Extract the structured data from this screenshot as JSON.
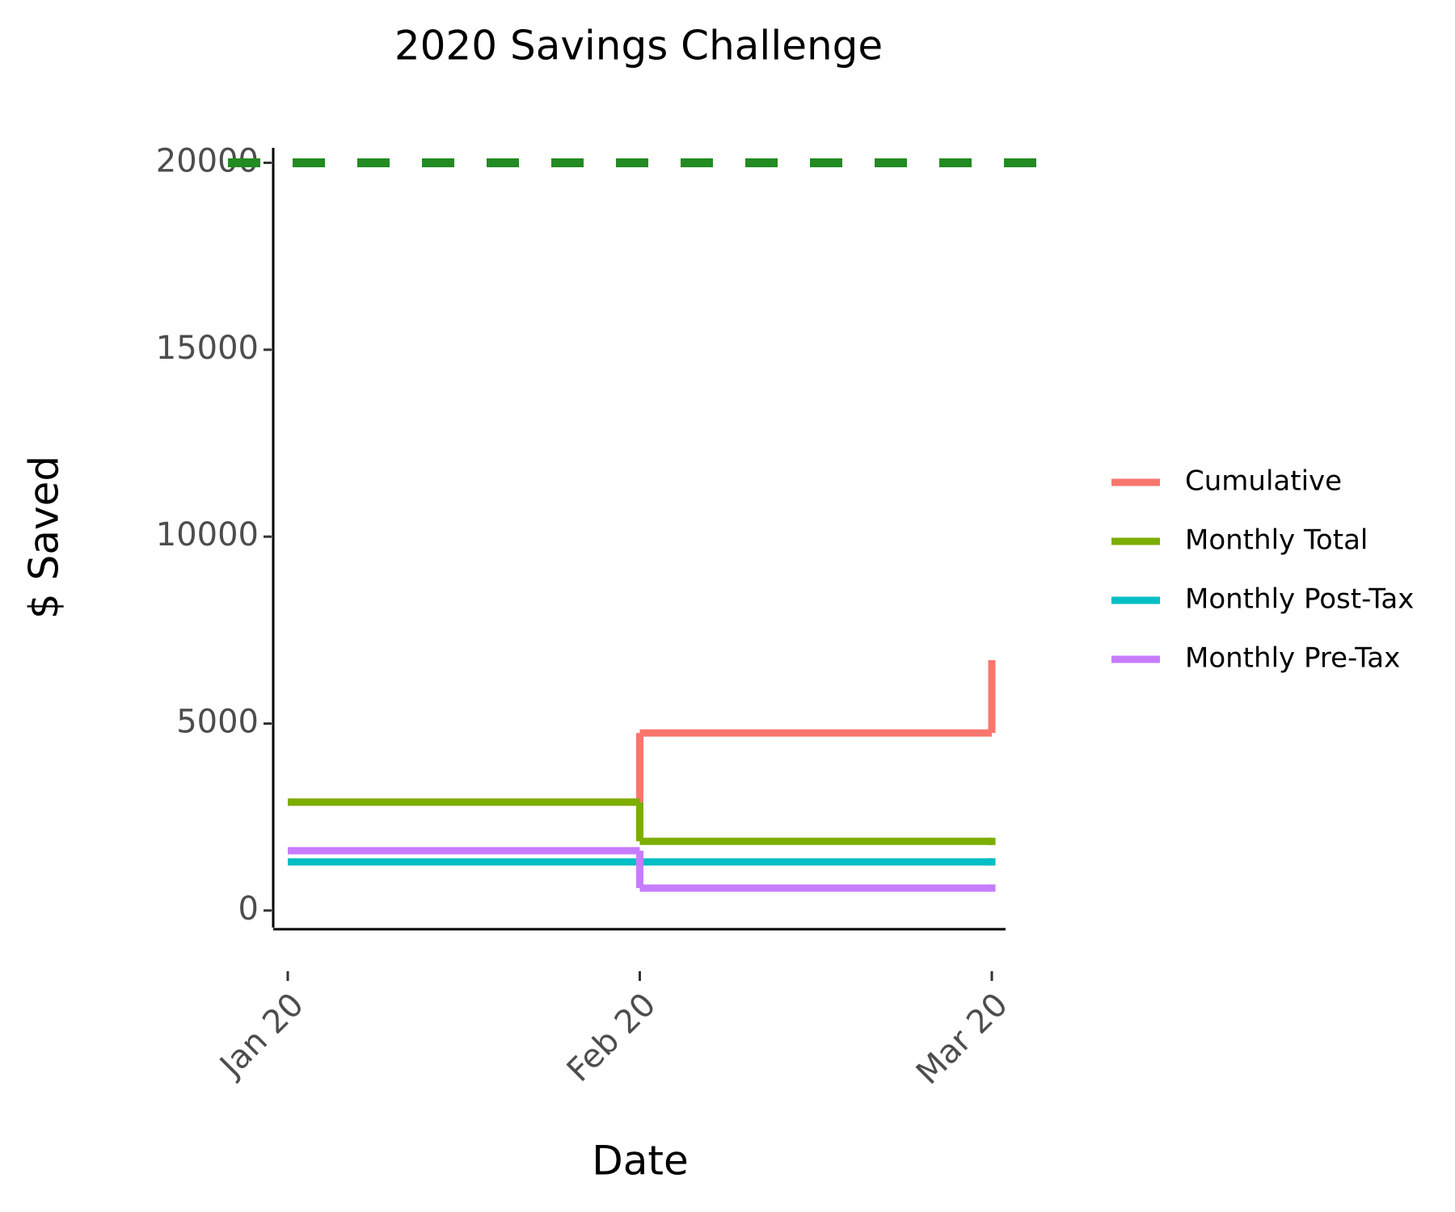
{
  "chart_data": {
    "type": "step",
    "title": "2020 Savings Challenge",
    "x_label": "Date",
    "y_label": "$ Saved",
    "categories": [
      "Jan 20",
      "Feb 20",
      "Mar 20"
    ],
    "series": [
      {
        "name": "Cumulative",
        "color": "#F8766D",
        "values": [
          2900,
          4750,
          6600
        ]
      },
      {
        "name": "Monthly Total",
        "color": "#7CAE00",
        "values": [
          2900,
          1850,
          1850
        ]
      },
      {
        "name": "Monthly Post-Tax",
        "color": "#00BFC4",
        "values": [
          1300,
          1300,
          1300
        ]
      },
      {
        "name": "Monthly Pre-Tax",
        "color": "#C77CFF",
        "values": [
          1600,
          600,
          600
        ]
      }
    ],
    "reference_line": {
      "value": 20000,
      "color": "#228B22",
      "dashed": true
    },
    "ylim": [
      -500,
      20400
    ],
    "yticks": [
      0,
      5000,
      10000,
      15000,
      20000
    ],
    "legend": "right"
  }
}
